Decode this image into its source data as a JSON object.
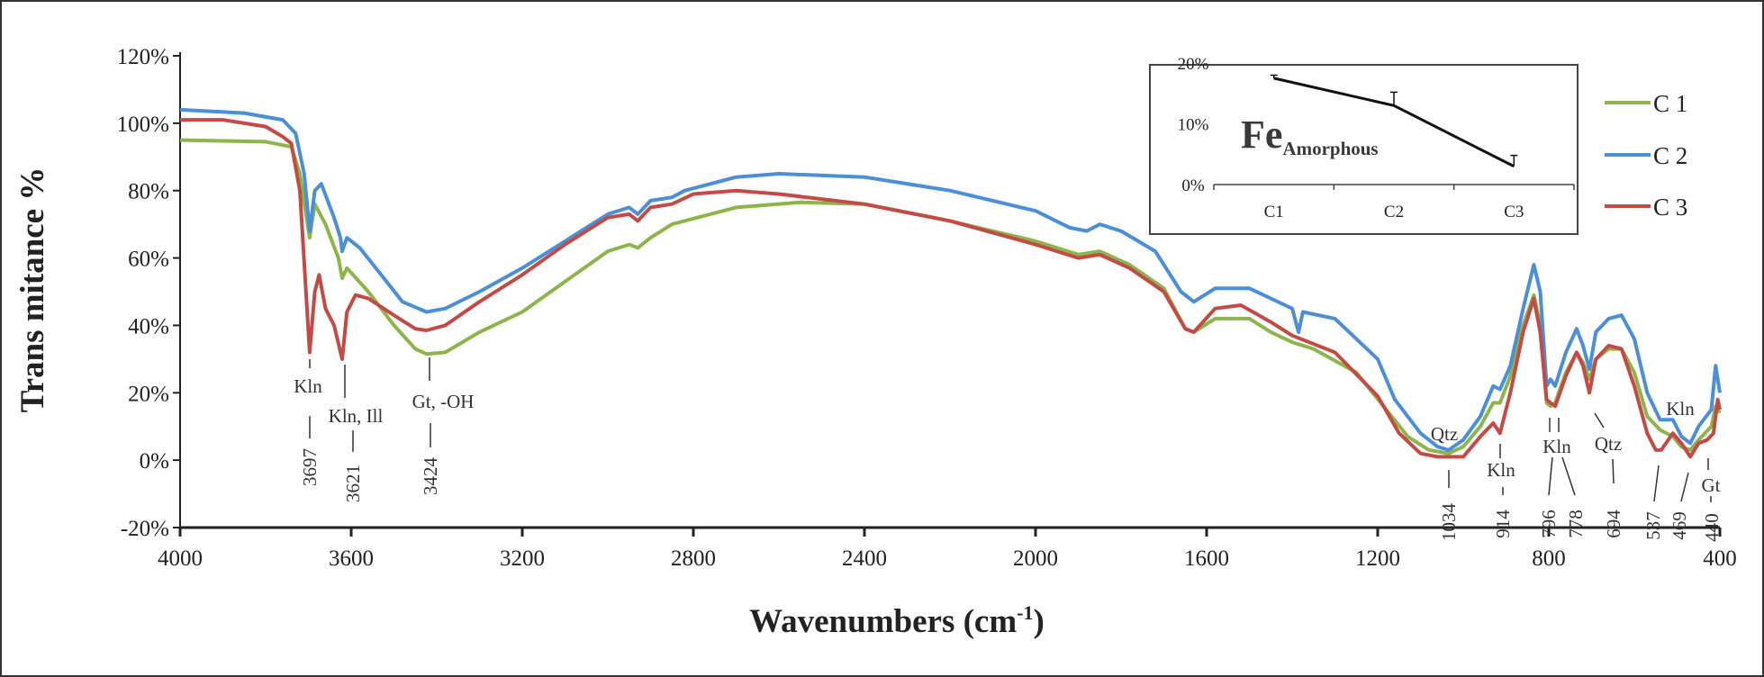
{
  "chart_data": {
    "type": "line",
    "title": "",
    "xlabel": "Wavenumbers (cm",
    "xlabel_sup": "-1",
    "xlabel_end": ")",
    "ylabel": "Trans mitance %",
    "xlim": [
      4000,
      400
    ],
    "ylim": [
      -20,
      120
    ],
    "x_ticks": [
      "4000",
      "3600",
      "3200",
      "2800",
      "2400",
      "2000",
      "1600",
      "1200",
      "800",
      "400"
    ],
    "x_tick_values": [
      4000,
      3600,
      3200,
      2800,
      2400,
      2000,
      1600,
      1200,
      800,
      400
    ],
    "y_ticks": [
      "120%",
      "100%",
      "80%",
      "60%",
      "40%",
      "20%",
      "0%",
      "-20%"
    ],
    "y_tick_values": [
      120,
      100,
      80,
      60,
      40,
      20,
      0,
      -20
    ],
    "legend_position": "right",
    "series": [
      {
        "name": "C 1",
        "color": "#8db54a",
        "points": [
          [
            4000,
            95
          ],
          [
            3800,
            94.5
          ],
          [
            3740,
            93
          ],
          [
            3720,
            85
          ],
          [
            3697,
            66
          ],
          [
            3685,
            76
          ],
          [
            3660,
            70
          ],
          [
            3630,
            60
          ],
          [
            3621,
            54
          ],
          [
            3610,
            57
          ],
          [
            3560,
            50
          ],
          [
            3500,
            40
          ],
          [
            3450,
            33
          ],
          [
            3424,
            31.5
          ],
          [
            3380,
            32
          ],
          [
            3300,
            38
          ],
          [
            3200,
            44
          ],
          [
            3100,
            53
          ],
          [
            3000,
            62
          ],
          [
            2950,
            64
          ],
          [
            2930,
            63
          ],
          [
            2900,
            66
          ],
          [
            2850,
            70
          ],
          [
            2700,
            75
          ],
          [
            2550,
            76.5
          ],
          [
            2400,
            76
          ],
          [
            2200,
            71
          ],
          [
            2000,
            65
          ],
          [
            1900,
            61
          ],
          [
            1850,
            62
          ],
          [
            1780,
            58
          ],
          [
            1700,
            51
          ],
          [
            1650,
            39
          ],
          [
            1630,
            38
          ],
          [
            1580,
            42
          ],
          [
            1500,
            42
          ],
          [
            1450,
            38
          ],
          [
            1400,
            35
          ],
          [
            1350,
            33
          ],
          [
            1250,
            26
          ],
          [
            1180,
            15
          ],
          [
            1130,
            7
          ],
          [
            1080,
            3
          ],
          [
            1034,
            2
          ],
          [
            1000,
            4
          ],
          [
            960,
            10
          ],
          [
            930,
            17
          ],
          [
            914,
            17
          ],
          [
            890,
            25
          ],
          [
            860,
            40
          ],
          [
            835,
            49
          ],
          [
            820,
            40
          ],
          [
            805,
            17
          ],
          [
            796,
            16
          ],
          [
            785,
            17
          ],
          [
            760,
            26
          ],
          [
            735,
            32
          ],
          [
            720,
            29
          ],
          [
            705,
            24
          ],
          [
            690,
            30
          ],
          [
            660,
            33
          ],
          [
            630,
            33
          ],
          [
            600,
            26
          ],
          [
            570,
            13
          ],
          [
            540,
            9
          ],
          [
            510,
            7
          ],
          [
            490,
            4
          ],
          [
            469,
            3
          ],
          [
            450,
            6
          ],
          [
            420,
            10
          ],
          [
            410,
            16
          ],
          [
            400,
            14
          ]
        ]
      },
      {
        "name": "C 2",
        "color": "#4a8fd8",
        "points": [
          [
            4000,
            104
          ],
          [
            3850,
            103
          ],
          [
            3760,
            101
          ],
          [
            3730,
            97
          ],
          [
            3710,
            85
          ],
          [
            3697,
            68
          ],
          [
            3685,
            80
          ],
          [
            3670,
            82
          ],
          [
            3640,
            72
          ],
          [
            3625,
            66
          ],
          [
            3621,
            62
          ],
          [
            3610,
            66
          ],
          [
            3580,
            63
          ],
          [
            3530,
            55
          ],
          [
            3480,
            47
          ],
          [
            3424,
            44
          ],
          [
            3380,
            45
          ],
          [
            3300,
            50
          ],
          [
            3200,
            57
          ],
          [
            3100,
            65
          ],
          [
            3000,
            73
          ],
          [
            2950,
            75
          ],
          [
            2930,
            73
          ],
          [
            2900,
            77
          ],
          [
            2850,
            78
          ],
          [
            2820,
            80
          ],
          [
            2700,
            84
          ],
          [
            2600,
            85
          ],
          [
            2400,
            84
          ],
          [
            2200,
            80
          ],
          [
            2000,
            74
          ],
          [
            1920,
            69
          ],
          [
            1880,
            68
          ],
          [
            1850,
            70
          ],
          [
            1800,
            68
          ],
          [
            1720,
            62
          ],
          [
            1660,
            50
          ],
          [
            1630,
            47
          ],
          [
            1580,
            51
          ],
          [
            1500,
            51
          ],
          [
            1450,
            48
          ],
          [
            1400,
            45
          ],
          [
            1385,
            38
          ],
          [
            1375,
            44
          ],
          [
            1300,
            42
          ],
          [
            1200,
            30
          ],
          [
            1160,
            18
          ],
          [
            1100,
            8
          ],
          [
            1060,
            4
          ],
          [
            1034,
            3
          ],
          [
            1000,
            6
          ],
          [
            960,
            13
          ],
          [
            930,
            22
          ],
          [
            914,
            21
          ],
          [
            890,
            28
          ],
          [
            860,
            45
          ],
          [
            835,
            58
          ],
          [
            820,
            50
          ],
          [
            805,
            22
          ],
          [
            796,
            24
          ],
          [
            785,
            22
          ],
          [
            760,
            32
          ],
          [
            735,
            39
          ],
          [
            720,
            34
          ],
          [
            705,
            27
          ],
          [
            690,
            38
          ],
          [
            660,
            42
          ],
          [
            630,
            43
          ],
          [
            600,
            36
          ],
          [
            570,
            20
          ],
          [
            540,
            12
          ],
          [
            510,
            12
          ],
          [
            490,
            7
          ],
          [
            469,
            5
          ],
          [
            450,
            10
          ],
          [
            420,
            15
          ],
          [
            410,
            28
          ],
          [
            400,
            20
          ]
        ]
      },
      {
        "name": "C 3",
        "color": "#c44b45",
        "points": [
          [
            4000,
            101
          ],
          [
            3900,
            101
          ],
          [
            3800,
            99
          ],
          [
            3760,
            96
          ],
          [
            3740,
            94
          ],
          [
            3720,
            80
          ],
          [
            3697,
            32
          ],
          [
            3685,
            50
          ],
          [
            3675,
            55
          ],
          [
            3660,
            45
          ],
          [
            3640,
            40
          ],
          [
            3621,
            30
          ],
          [
            3610,
            44
          ],
          [
            3590,
            49
          ],
          [
            3560,
            48
          ],
          [
            3500,
            43
          ],
          [
            3450,
            39
          ],
          [
            3424,
            38.5
          ],
          [
            3380,
            40
          ],
          [
            3300,
            47
          ],
          [
            3200,
            55
          ],
          [
            3100,
            64
          ],
          [
            3000,
            72
          ],
          [
            2950,
            73
          ],
          [
            2930,
            71
          ],
          [
            2900,
            75
          ],
          [
            2850,
            76
          ],
          [
            2800,
            79
          ],
          [
            2700,
            80
          ],
          [
            2600,
            79
          ],
          [
            2400,
            76
          ],
          [
            2200,
            71
          ],
          [
            2000,
            64
          ],
          [
            1900,
            60
          ],
          [
            1850,
            61
          ],
          [
            1780,
            57
          ],
          [
            1700,
            50
          ],
          [
            1650,
            39
          ],
          [
            1630,
            38
          ],
          [
            1580,
            45
          ],
          [
            1520,
            46
          ],
          [
            1450,
            41
          ],
          [
            1400,
            37
          ],
          [
            1300,
            32
          ],
          [
            1200,
            19
          ],
          [
            1150,
            8
          ],
          [
            1100,
            2
          ],
          [
            1060,
            1
          ],
          [
            1034,
            1
          ],
          [
            1000,
            1
          ],
          [
            960,
            7
          ],
          [
            930,
            11
          ],
          [
            914,
            8
          ],
          [
            890,
            20
          ],
          [
            860,
            38
          ],
          [
            835,
            48
          ],
          [
            820,
            38
          ],
          [
            805,
            18
          ],
          [
            796,
            17
          ],
          [
            785,
            16
          ],
          [
            760,
            25
          ],
          [
            735,
            32
          ],
          [
            720,
            28
          ],
          [
            705,
            20
          ],
          [
            690,
            30
          ],
          [
            660,
            34
          ],
          [
            630,
            33
          ],
          [
            600,
            22
          ],
          [
            570,
            8
          ],
          [
            550,
            3
          ],
          [
            537,
            3
          ],
          [
            510,
            8
          ],
          [
            490,
            5
          ],
          [
            469,
            1
          ],
          [
            450,
            5
          ],
          [
            430,
            6
          ],
          [
            415,
            8
          ],
          [
            405,
            18
          ],
          [
            400,
            15
          ]
        ]
      }
    ],
    "annotations": {
      "bands": [
        "3697",
        "3621",
        "3424",
        "1034",
        "914",
        "796",
        "778",
        "694",
        "537",
        "469",
        "440"
      ],
      "assignments": [
        "Kln",
        "Kln, Ill",
        "Gt, -OH",
        "Qtz",
        "Kln",
        "Kln",
        "Qtz",
        "Kln",
        "Gt"
      ]
    },
    "inset": {
      "type": "line",
      "label_main": "Fe",
      "label_sub": "Amorphous",
      "categories": [
        "C1",
        "C2",
        "C3"
      ],
      "values": [
        17.5,
        13,
        3
      ],
      "error_plus": [
        0.5,
        2.2,
        1.8
      ],
      "ylim": [
        0,
        20
      ],
      "y_ticks": [
        "20%",
        "10%",
        "0%"
      ],
      "y_tick_values": [
        20,
        10,
        0
      ]
    }
  }
}
